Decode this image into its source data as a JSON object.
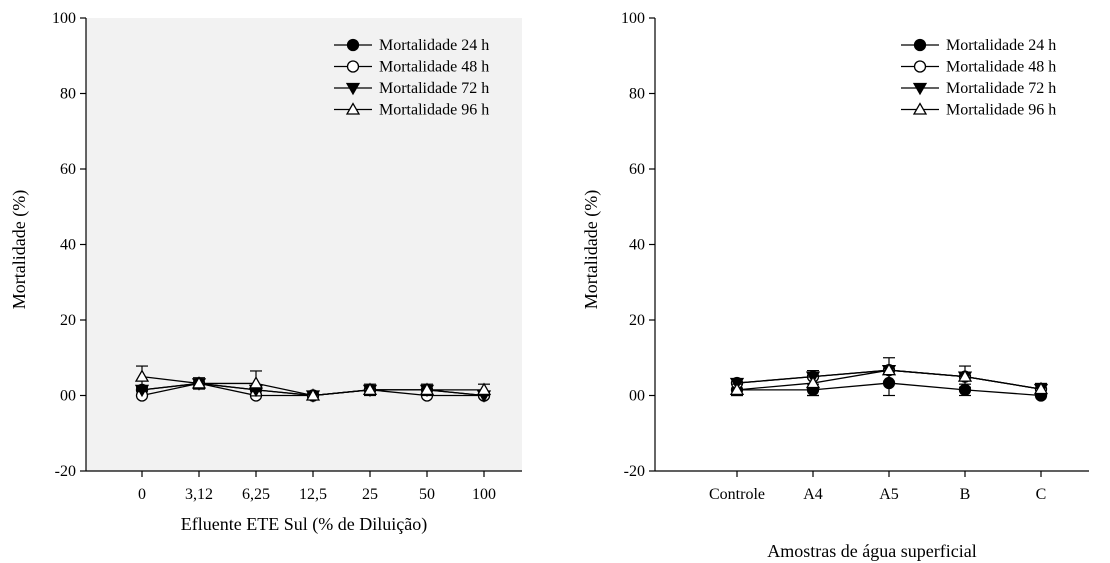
{
  "chart_data": [
    {
      "type": "line",
      "title": "",
      "xlabel": "Efluente ETE Sul (% de Diluição)",
      "ylabel": "Mortalidade (%)",
      "ylim": [
        -20,
        100
      ],
      "yticks": [
        "-20",
        "00",
        "20",
        "40",
        "60",
        "80",
        "100"
      ],
      "categories": [
        "0",
        "3,12",
        "6,25",
        "12,5",
        "25",
        "50",
        "100"
      ],
      "plot_background": "#f2f2f2",
      "legend_position": "top-right",
      "grid": false,
      "series": [
        {
          "name": "Mortalidade 24 h",
          "marker": "filled-circle",
          "values": [
            1.5,
            3.2,
            1.5,
            0,
            1.5,
            1.5,
            0
          ]
        },
        {
          "name": "Mortalidade 48 h",
          "marker": "open-circle",
          "values": [
            0,
            3.2,
            0,
            0,
            1.5,
            0,
            0
          ]
        },
        {
          "name": "Mortalidade 72 h",
          "marker": "filled-triangle-down",
          "values": [
            1.5,
            3.2,
            1.5,
            0,
            1.5,
            1.5,
            0
          ]
        },
        {
          "name": "Mortalidade 96 h",
          "marker": "open-triangle-up",
          "values": [
            5,
            3.2,
            3.2,
            0,
            1.5,
            1.5,
            1.5
          ],
          "error": [
            2.8,
            1.5,
            3.3,
            0,
            1.5,
            1.5,
            1.5
          ]
        }
      ]
    },
    {
      "type": "line",
      "title": "",
      "xlabel": "Amostras de água superficial",
      "ylabel": "Mortalidade (%)",
      "ylim": [
        -20,
        100
      ],
      "yticks": [
        "-20",
        "00",
        "20",
        "40",
        "60",
        "80",
        "100"
      ],
      "categories": [
        "Controle",
        "A4",
        "A5",
        "B",
        "C"
      ],
      "plot_background": "#ffffff",
      "legend_position": "top-right",
      "grid": false,
      "series": [
        {
          "name": "Mortalidade 24 h",
          "marker": "filled-circle",
          "values": [
            1.5,
            1.5,
            3.3,
            1.5,
            0
          ],
          "error": [
            1.5,
            1.5,
            3.3,
            1.5,
            0
          ]
        },
        {
          "name": "Mortalidade 48 h",
          "marker": "open-circle",
          "values": [
            3.3,
            5,
            6.7,
            5,
            1.7
          ]
        },
        {
          "name": "Mortalidade 72 h",
          "marker": "filled-triangle-down",
          "values": [
            3.3,
            5,
            6.7,
            5,
            1.7
          ]
        },
        {
          "name": "Mortalidade 96 h",
          "marker": "open-triangle-up",
          "values": [
            1.5,
            3.3,
            6.7,
            5,
            1.7
          ],
          "error": [
            1.5,
            3.3,
            3.3,
            2.8,
            1.5
          ]
        }
      ]
    }
  ]
}
